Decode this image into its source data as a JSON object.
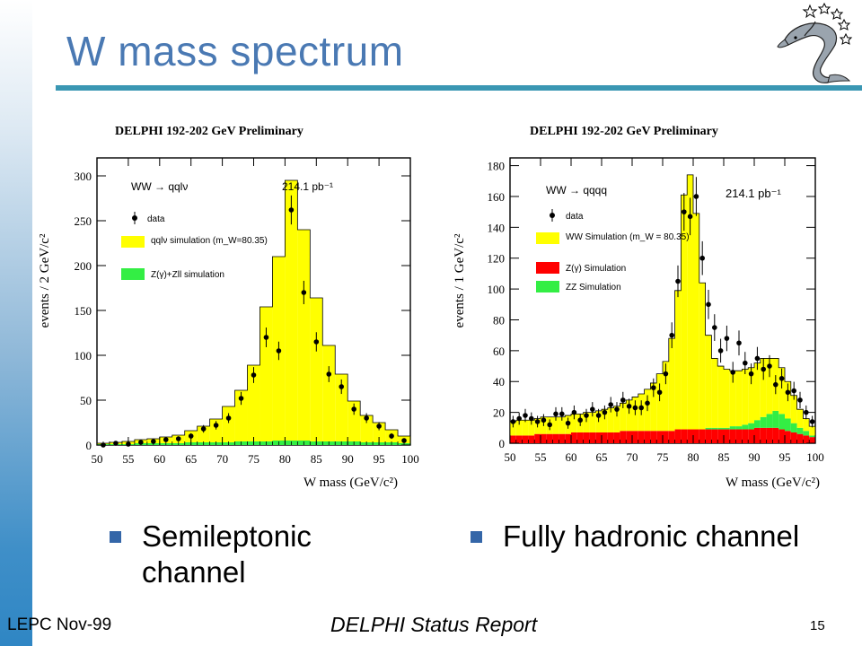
{
  "slide": {
    "title": "W mass spectrum",
    "bullets": [
      "Semileptonic channel",
      "Fully hadronic channel"
    ],
    "footer_left": "LEPC Nov-99",
    "footer_center": "DELPHI Status Report",
    "page_number": "15"
  },
  "colors": {
    "title": "#4a79b3",
    "rule": "#3a97b3",
    "bullet": "#3466a8",
    "yellow": "#ffff00",
    "green": "#33ee44",
    "red": "#ff0000"
  },
  "chart_data": [
    {
      "type": "bar",
      "title": "DELPHI 192-202 GeV Preliminary",
      "process": "WW → qqlν",
      "lumi": "214.1 pb⁻¹",
      "xlabel": "W mass (GeV/c²)",
      "ylabel": "events / 2 GeV/c²",
      "xlim": [
        50,
        100
      ],
      "ylim": [
        0,
        320
      ],
      "xticks": [
        50,
        55,
        60,
        65,
        70,
        75,
        80,
        85,
        90,
        95,
        100
      ],
      "yticks": [
        0,
        50,
        100,
        150,
        200,
        250,
        300
      ],
      "bin_edges": [
        50,
        52,
        54,
        56,
        58,
        60,
        62,
        64,
        66,
        68,
        70,
        72,
        74,
        76,
        78,
        80,
        82,
        84,
        86,
        88,
        90,
        92,
        94,
        96,
        98,
        100
      ],
      "legend": [
        "data",
        "qqlν simulation (m_W=80.35)",
        "Z(γ)+Zll simulation"
      ],
      "series": [
        {
          "name": "qqlν simulation",
          "color": "#ffff00",
          "values": [
            1,
            2,
            3,
            4,
            5,
            7,
            9,
            13,
            18,
            26,
            40,
            57,
            85,
            150,
            205,
            290,
            235,
            160,
            107,
            75,
            45,
            30,
            22,
            14,
            8
          ]
        },
        {
          "name": "Z(γ)+Zll simulation",
          "color": "#33ee44",
          "values": [
            1,
            1,
            1,
            2,
            2,
            2,
            2,
            3,
            3,
            3,
            3,
            4,
            4,
            4,
            5,
            5,
            5,
            4,
            4,
            4,
            4,
            3,
            3,
            3,
            2
          ]
        },
        {
          "name": "data",
          "type": "points",
          "x": [
            51,
            53,
            55,
            57,
            59,
            61,
            63,
            65,
            67,
            69,
            71,
            73,
            75,
            77,
            79,
            81,
            83,
            85,
            87,
            89,
            91,
            93,
            95,
            97,
            99
          ],
          "values": [
            0,
            2,
            1,
            3,
            4,
            6,
            7,
            10,
            18,
            22,
            30,
            52,
            78,
            120,
            105,
            262,
            170,
            115,
            79,
            65,
            40,
            30,
            21,
            10,
            5
          ]
        }
      ]
    },
    {
      "type": "bar",
      "title": "DELPHI 192-202 GeV Preliminary",
      "process": "WW → qqqq",
      "lumi": "214.1 pb⁻¹",
      "xlabel": "W mass (GeV/c²)",
      "ylabel": "events / 1 GeV/c²",
      "xlim": [
        50,
        100
      ],
      "ylim": [
        0,
        185
      ],
      "xticks": [
        50,
        55,
        60,
        65,
        70,
        75,
        80,
        85,
        90,
        95,
        100
      ],
      "yticks": [
        0,
        20,
        40,
        60,
        80,
        100,
        120,
        140,
        160,
        180
      ],
      "legend": [
        "data",
        "WW Simulation (m_W = 80.35)",
        "Z(γ) Simulation",
        "ZZ Simulation"
      ],
      "series": [
        {
          "name": "WW Simulation",
          "color": "#ffff00",
          "values": [
            9,
            10,
            10,
            10,
            10,
            11,
            11,
            11,
            11,
            12,
            12,
            12,
            13,
            13,
            14,
            15,
            16,
            17,
            18,
            20,
            22,
            24,
            27,
            31,
            37,
            45,
            60,
            90,
            152,
            165,
            140,
            95,
            60,
            45,
            40,
            38,
            36,
            36,
            36,
            36,
            37,
            38,
            36,
            34,
            30,
            24,
            18,
            12,
            8,
            6
          ]
        },
        {
          "name": "ZZ Simulation",
          "color": "#33ee44",
          "values": [
            0,
            0,
            0,
            0,
            0,
            0,
            0,
            0,
            0,
            0,
            0,
            0,
            0,
            0,
            0,
            0,
            0,
            0,
            0,
            0,
            0,
            0,
            0,
            0,
            0,
            0,
            0,
            0,
            0,
            0,
            0,
            0,
            1,
            1,
            1,
            1,
            2,
            2,
            3,
            4,
            5,
            7,
            9,
            11,
            10,
            8,
            6,
            4,
            3,
            1
          ]
        },
        {
          "name": "Z(γ) Simulation",
          "color": "#ff0000",
          "values": [
            5,
            5,
            5,
            5,
            6,
            6,
            6,
            6,
            6,
            6,
            7,
            7,
            7,
            7,
            7,
            7,
            7,
            7,
            8,
            8,
            8,
            8,
            8,
            8,
            8,
            8,
            8,
            9,
            9,
            9,
            9,
            9,
            9,
            9,
            9,
            9,
            9,
            9,
            9,
            9,
            10,
            10,
            10,
            10,
            9,
            8,
            7,
            6,
            5,
            4
          ]
        },
        {
          "name": "data",
          "type": "points",
          "values": [
            14,
            16,
            18,
            16,
            14,
            15,
            12,
            19,
            19,
            13,
            20,
            15,
            18,
            22,
            18,
            20,
            25,
            22,
            28,
            24,
            23,
            23,
            26,
            36,
            33,
            45,
            70,
            105,
            150,
            147,
            160,
            120,
            90,
            75,
            60,
            68,
            46,
            65,
            52,
            45,
            55,
            48,
            50,
            38,
            42,
            33,
            34,
            28,
            20,
            14
          ]
        }
      ]
    }
  ]
}
